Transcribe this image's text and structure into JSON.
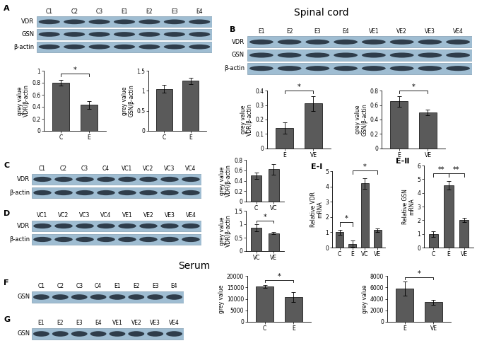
{
  "section_titles": [
    "Spinal cord",
    "Serum"
  ],
  "blots": [
    {
      "panel": "A",
      "lanes": [
        "C1",
        "C2",
        "C3",
        "E1",
        "E2",
        "E3",
        "E4"
      ],
      "rows": [
        "VDR",
        "GSN",
        "β-actin"
      ]
    },
    {
      "panel": "B",
      "lanes": [
        "E1",
        "E2",
        "E3",
        "E4",
        "VE1",
        "VE2",
        "VE3",
        "VE4"
      ],
      "rows": [
        "VDR",
        "GSN",
        "β-actin"
      ]
    },
    {
      "panel": "C",
      "lanes": [
        "C1",
        "C2",
        "C3",
        "C4",
        "VC1",
        "VC2",
        "VC3",
        "VC4"
      ],
      "rows": [
        "VDR",
        "β-actin"
      ]
    },
    {
      "panel": "D",
      "lanes": [
        "VC1",
        "VC2",
        "VC3",
        "VC4",
        "VE1",
        "VE2",
        "VE3",
        "VE4"
      ],
      "rows": [
        "VDR",
        "β-actin"
      ]
    },
    {
      "panel": "F",
      "lanes": [
        "C1",
        "C2",
        "C3",
        "C4",
        "E1",
        "E2",
        "E3",
        "E4"
      ],
      "rows": [
        "GSN"
      ]
    },
    {
      "panel": "G",
      "lanes": [
        "E1",
        "E2",
        "E3",
        "E4",
        "VE1",
        "VE2",
        "VE3",
        "VE4"
      ],
      "rows": [
        "GSN"
      ]
    }
  ],
  "chart_data": [
    {
      "type": "bar",
      "ylabel": "grey value\nVDR/β-actin",
      "categories": [
        "C",
        "E"
      ],
      "values": [
        0.8,
        0.43
      ],
      "errors": [
        0.05,
        0.06
      ],
      "color": "#5a5a5a",
      "ylim": [
        0,
        1
      ],
      "yticks": [
        0,
        0.2,
        0.4,
        0.6,
        0.8,
        1
      ],
      "annotations": [
        {
          "from": "C",
          "to": "E",
          "text": "*"
        }
      ]
    },
    {
      "type": "bar",
      "ylabel": "grey value\nGSN/β-actin",
      "categories": [
        "C",
        "E"
      ],
      "values": [
        1.05,
        1.25
      ],
      "errors": [
        0.1,
        0.08
      ],
      "color": "#5a5a5a",
      "ylim": [
        0,
        1.5
      ],
      "yticks": [
        0,
        0.5,
        1,
        1.5
      ],
      "annotations": []
    },
    {
      "type": "bar",
      "ylabel": "grey value\nVDR/β-actin",
      "categories": [
        "E",
        "VE"
      ],
      "values": [
        0.14,
        0.31
      ],
      "errors": [
        0.04,
        0.05
      ],
      "color": "#5a5a5a",
      "ylim": [
        0,
        0.4
      ],
      "yticks": [
        0,
        0.1,
        0.2,
        0.3,
        0.4
      ],
      "annotations": [
        {
          "from": "E",
          "to": "VE",
          "text": "*"
        }
      ]
    },
    {
      "type": "bar",
      "ylabel": "grey value\nGSN/β-actin",
      "categories": [
        "E",
        "VE"
      ],
      "values": [
        0.65,
        0.5
      ],
      "errors": [
        0.07,
        0.04
      ],
      "color": "#5a5a5a",
      "ylim": [
        0,
        0.8
      ],
      "yticks": [
        0,
        0.2,
        0.4,
        0.6,
        0.8
      ],
      "annotations": [
        {
          "from": "E",
          "to": "VE",
          "text": "*"
        }
      ]
    },
    {
      "type": "bar",
      "ylabel": "grey value\nVDR/β-actin",
      "categories": [
        "C",
        "VC"
      ],
      "values": [
        0.5,
        0.62
      ],
      "errors": [
        0.06,
        0.1
      ],
      "color": "#5a5a5a",
      "ylim": [
        0,
        0.8
      ],
      "yticks": [
        0,
        0.2,
        0.4,
        0.6,
        0.8
      ],
      "annotations": []
    },
    {
      "type": "bar",
      "ylabel": "grey value\nVDR/β-actin",
      "categories": [
        "VC",
        "VE"
      ],
      "values": [
        0.87,
        0.67
      ],
      "errors": [
        0.12,
        0.05
      ],
      "color": "#5a5a5a",
      "ylim": [
        0,
        1.5
      ],
      "yticks": [
        0,
        0.5,
        1,
        1.5
      ],
      "annotations": [
        {
          "from": "VC",
          "to": "VE",
          "text": "*"
        }
      ]
    },
    {
      "type": "bar",
      "panel": "E-Ⅰ",
      "ylabel": "Relative VDR\nmRNA",
      "categories": [
        "C",
        "E",
        "VC",
        "VE"
      ],
      "values": [
        1.0,
        0.25,
        4.2,
        1.15
      ],
      "errors": [
        0.15,
        0.2,
        0.35,
        0.12
      ],
      "color": "#5a5a5a",
      "ylim": [
        0,
        5
      ],
      "yticks": [
        0,
        1,
        2,
        3,
        4,
        5
      ],
      "annotations": [
        {
          "from": "C",
          "to": "E",
          "text": "*"
        },
        {
          "from": "E",
          "to": "VE",
          "text": "*"
        }
      ]
    },
    {
      "type": "bar",
      "panel": "E-Ⅱ",
      "ylabel": "Relative GSN\nmRNA",
      "categories": [
        "C",
        "E",
        "VE"
      ],
      "values": [
        1.0,
        4.55,
        2.0
      ],
      "errors": [
        0.2,
        0.3,
        0.15
      ],
      "color": "#5a5a5a",
      "ylim": [
        0,
        6
      ],
      "yticks": [
        0,
        1,
        2,
        3,
        4,
        5,
        6
      ],
      "annotations": [
        {
          "from": "C",
          "to": "E",
          "text": "**"
        },
        {
          "from": "E",
          "to": "VE",
          "text": "**"
        }
      ]
    },
    {
      "type": "bar",
      "ylabel": "grey value",
      "categories": [
        "C",
        "E"
      ],
      "values": [
        15500,
        10800
      ],
      "errors": [
        600,
        2200
      ],
      "color": "#5a5a5a",
      "ylim": [
        0,
        20000
      ],
      "yticks": [
        0,
        5000,
        10000,
        15000,
        20000
      ],
      "annotations": [
        {
          "from": "C",
          "to": "E",
          "text": "*"
        }
      ]
    },
    {
      "type": "bar",
      "ylabel": "grey value",
      "categories": [
        "E",
        "VE"
      ],
      "values": [
        5800,
        3400
      ],
      "errors": [
        1200,
        400
      ],
      "color": "#5a5a5a",
      "ylim": [
        0,
        8000
      ],
      "yticks": [
        0,
        2000,
        4000,
        6000,
        8000
      ],
      "annotations": [
        {
          "from": "E",
          "to": "VE",
          "text": "*"
        }
      ]
    }
  ]
}
